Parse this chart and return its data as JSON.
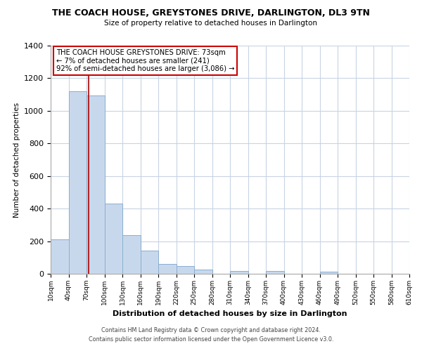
{
  "title": "THE COACH HOUSE, GREYSTONES DRIVE, DARLINGTON, DL3 9TN",
  "subtitle": "Size of property relative to detached houses in Darlington",
  "xlabel": "Distribution of detached houses by size in Darlington",
  "ylabel": "Number of detached properties",
  "bar_color": "#c8d8ec",
  "bar_edge_color": "#8aaed0",
  "marker_color": "#aa0000",
  "background_color": "#ffffff",
  "grid_color": "#c8d4e4",
  "bin_edges": [
    10,
    40,
    70,
    100,
    130,
    160,
    190,
    220,
    250,
    280,
    310,
    340,
    370,
    400,
    430,
    460,
    490,
    520,
    550,
    580,
    610
  ],
  "bin_labels": [
    "10sqm",
    "40sqm",
    "70sqm",
    "100sqm",
    "130sqm",
    "160sqm",
    "190sqm",
    "220sqm",
    "250sqm",
    "280sqm",
    "310sqm",
    "340sqm",
    "370sqm",
    "400sqm",
    "430sqm",
    "460sqm",
    "490sqm",
    "520sqm",
    "550sqm",
    "580sqm",
    "610sqm"
  ],
  "counts": [
    210,
    1120,
    1095,
    430,
    238,
    143,
    62,
    48,
    25,
    0,
    18,
    0,
    18,
    0,
    0,
    12,
    0,
    0,
    0,
    0
  ],
  "ylim": [
    0,
    1400
  ],
  "yticks": [
    0,
    200,
    400,
    600,
    800,
    1000,
    1200,
    1400
  ],
  "property_size": 73,
  "annotation_line1": "THE COACH HOUSE GREYSTONES DRIVE: 73sqm",
  "annotation_line2": "← 7% of detached houses are smaller (241)",
  "annotation_line3": "92% of semi-detached houses are larger (3,086) →",
  "footer_line1": "Contains HM Land Registry data © Crown copyright and database right 2024.",
  "footer_line2": "Contains public sector information licensed under the Open Government Licence v3.0."
}
